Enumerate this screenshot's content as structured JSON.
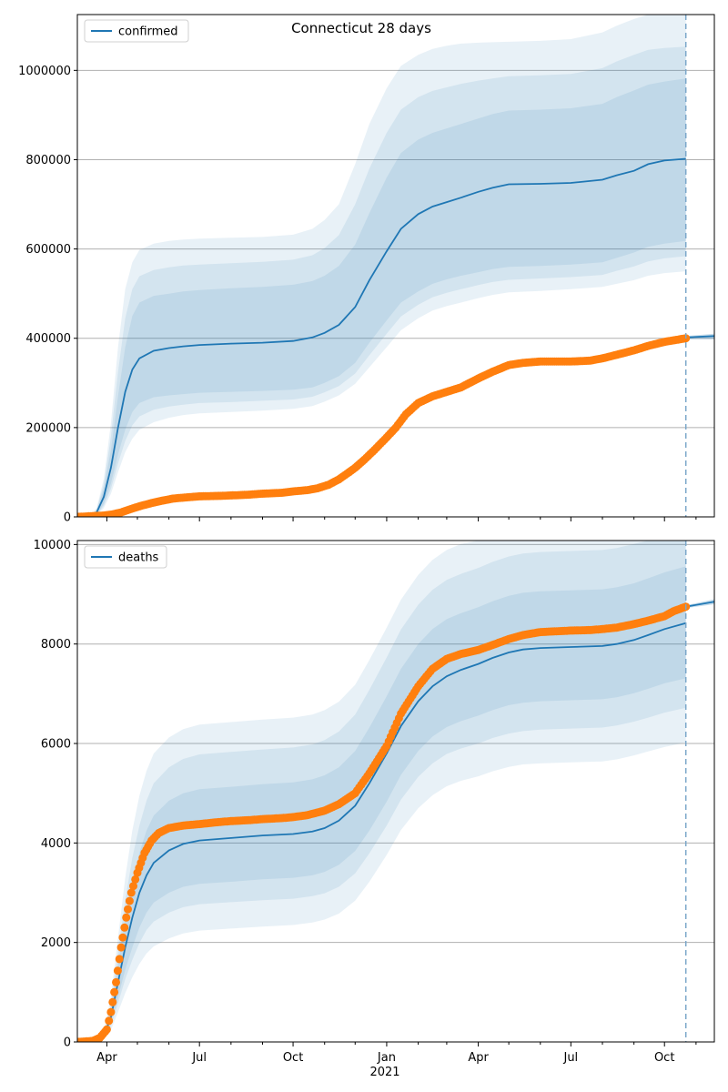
{
  "title": "Connecticut 28 days",
  "colors": {
    "model": "#1f77b4",
    "observed": "#ff7f0e",
    "band": "#1f77b4",
    "grid": "#b0b0b0",
    "vline": "#7aa6c9"
  },
  "x_ticks": [
    {
      "label": "Apr",
      "date": "2020-04-01"
    },
    {
      "label": "Jul",
      "date": "2020-07-01"
    },
    {
      "label": "Oct",
      "date": "2020-10-01"
    },
    {
      "label": "Jan",
      "date": "2021-01-01"
    },
    {
      "label": "Apr",
      "date": "2021-04-01"
    },
    {
      "label": "Jul",
      "date": "2021-07-01"
    },
    {
      "label": "Oct",
      "date": "2021-10-01"
    }
  ],
  "x_year_label": "2021",
  "chart_data": [
    {
      "type": "line",
      "name": "confirmed",
      "legend": "confirmed",
      "legend_position": "top-left",
      "grid": "horizontal",
      "xlim": [
        "2020-03-03",
        "2021-11-19"
      ],
      "ylim": [
        0,
        1125000
      ],
      "y_ticks": [
        0,
        200000,
        400000,
        600000,
        800000,
        1000000
      ],
      "forecast_start": "2021-10-22",
      "model": {
        "x": [
          "2020-03-03",
          "2020-03-15",
          "2020-03-22",
          "2020-03-29",
          "2020-04-05",
          "2020-04-12",
          "2020-04-19",
          "2020-04-26",
          "2020-05-03",
          "2020-05-17",
          "2020-06-01",
          "2020-06-15",
          "2020-07-01",
          "2020-08-01",
          "2020-09-01",
          "2020-10-01",
          "2020-10-20",
          "2020-11-01",
          "2020-11-15",
          "2020-12-01",
          "2020-12-15",
          "2021-01-01",
          "2021-01-15",
          "2021-02-01",
          "2021-02-15",
          "2021-03-01",
          "2021-03-15",
          "2021-04-01",
          "2021-04-15",
          "2021-05-01",
          "2021-06-01",
          "2021-07-01",
          "2021-08-01",
          "2021-08-15",
          "2021-09-01",
          "2021-09-15",
          "2021-10-01",
          "2021-10-22"
        ],
        "y": [
          0,
          0,
          10000,
          45000,
          110000,
          200000,
          280000,
          330000,
          355000,
          372000,
          378000,
          382000,
          385000,
          388000,
          390000,
          394000,
          402000,
          412000,
          430000,
          470000,
          530000,
          595000,
          645000,
          678000,
          695000,
          705000,
          715000,
          728000,
          737000,
          745000,
          746000,
          748000,
          755000,
          765000,
          775000,
          790000,
          798000,
          802000
        ],
        "band_inner": {
          "lower": [
            0,
            0,
            5000,
            30000,
            75000,
            140000,
            195000,
            235000,
            255000,
            268000,
            272000,
            275000,
            278000,
            280000,
            282000,
            285000,
            290000,
            300000,
            315000,
            345000,
            390000,
            440000,
            480000,
            505000,
            522000,
            532000,
            540000,
            548000,
            555000,
            560000,
            562000,
            565000,
            570000,
            580000,
            592000,
            605000,
            612000,
            618000
          ],
          "upper": [
            0,
            0,
            15000,
            62000,
            150000,
            270000,
            380000,
            450000,
            480000,
            495000,
            500000,
            505000,
            508000,
            512000,
            515000,
            520000,
            528000,
            540000,
            562000,
            610000,
            680000,
            760000,
            815000,
            845000,
            860000,
            870000,
            880000,
            892000,
            902000,
            910000,
            912000,
            915000,
            925000,
            940000,
            955000,
            968000,
            975000,
            982000
          ]
        },
        "band_outer": {
          "lower": [
            0,
            0,
            3000,
            20000,
            52000,
            100000,
            145000,
            175000,
            195000,
            212000,
            222000,
            228000,
            232000,
            235000,
            238000,
            242000,
            248000,
            258000,
            272000,
            298000,
            335000,
            380000,
            418000,
            445000,
            462000,
            472000,
            480000,
            490000,
            497000,
            503000,
            506000,
            510000,
            515000,
            522000,
            530000,
            540000,
            546000,
            550000
          ],
          "upper": [
            0,
            0,
            20000,
            85000,
            210000,
            380000,
            510000,
            570000,
            598000,
            612000,
            618000,
            621000,
            623000,
            625000,
            627000,
            632000,
            645000,
            665000,
            700000,
            790000,
            880000,
            960000,
            1010000,
            1035000,
            1048000,
            1055000,
            1060000,
            1062000,
            1063000,
            1064000,
            1066000,
            1070000,
            1085000,
            1100000,
            1115000,
            1125000,
            1125000,
            1125000
          ]
        },
        "band_mid": {
          "lower": [
            0,
            0,
            4000,
            25000,
            63000,
            120000,
            170000,
            205000,
            225000,
            240000,
            247000,
            251000,
            255000,
            257000,
            260000,
            263000,
            269000,
            279000,
            293000,
            321000,
            362000,
            410000,
            449000,
            475000,
            492000,
            502000,
            510000,
            519000,
            526000,
            531000,
            534000,
            537000,
            542000,
            551000,
            561000,
            572000,
            579000,
            584000
          ],
          "upper": [
            0,
            0,
            17000,
            73000,
            180000,
            325000,
            445000,
            510000,
            539000,
            553000,
            559000,
            563000,
            565000,
            568000,
            571000,
            576000,
            586000,
            602000,
            631000,
            700000,
            780000,
            860000,
            912000,
            940000,
            954000,
            962000,
            970000,
            977000,
            982000,
            987000,
            989000,
            992000,
            1005000,
            1020000,
            1035000,
            1046000,
            1050000,
            1053000
          ]
        }
      },
      "forecast_tail": {
        "x": [
          "2021-10-22",
          "2021-11-19"
        ],
        "y": [
          402000,
          405000
        ],
        "lower": [
          398000,
          398000
        ],
        "upper": [
          405000,
          410000
        ]
      },
      "observed": {
        "x": [
          "2020-03-03",
          "2020-03-20",
          "2020-03-29",
          "2020-04-05",
          "2020-04-15",
          "2020-04-25",
          "2020-05-05",
          "2020-05-15",
          "2020-05-25",
          "2020-06-05",
          "2020-06-20",
          "2020-07-01",
          "2020-07-20",
          "2020-08-01",
          "2020-08-20",
          "2020-09-01",
          "2020-09-20",
          "2020-10-01",
          "2020-10-15",
          "2020-10-25",
          "2020-11-05",
          "2020-11-15",
          "2020-11-25",
          "2020-12-01",
          "2020-12-10",
          "2020-12-20",
          "2021-01-01",
          "2021-01-10",
          "2021-01-20",
          "2021-02-01",
          "2021-02-15",
          "2021-03-01",
          "2021-03-15",
          "2021-04-01",
          "2021-04-15",
          "2021-05-01",
          "2021-05-15",
          "2021-06-01",
          "2021-07-01",
          "2021-07-20",
          "2021-08-01",
          "2021-08-15",
          "2021-09-01",
          "2021-09-15",
          "2021-10-01",
          "2021-10-22"
        ],
        "y": [
          0,
          2000,
          3000,
          5000,
          10000,
          18000,
          25000,
          31000,
          36000,
          41000,
          44000,
          46000,
          47000,
          48000,
          50000,
          52000,
          54000,
          57000,
          60000,
          64000,
          72000,
          84000,
          100000,
          110000,
          128000,
          150000,
          178000,
          200000,
          230000,
          255000,
          270000,
          280000,
          290000,
          310000,
          325000,
          340000,
          345000,
          348000,
          348000,
          350000,
          355000,
          363000,
          373000,
          383000,
          392000,
          400000
        ]
      }
    },
    {
      "type": "line",
      "name": "deaths",
      "legend": "deaths",
      "legend_position": "top-left",
      "grid": "horizontal",
      "xlim": [
        "2020-03-03",
        "2021-11-19"
      ],
      "ylim": [
        0,
        10080
      ],
      "y_ticks": [
        0,
        2000,
        4000,
        6000,
        8000,
        10000
      ],
      "forecast_start": "2021-10-22",
      "model": {
        "x": [
          "2020-03-03",
          "2020-03-15",
          "2020-03-22",
          "2020-03-29",
          "2020-04-05",
          "2020-04-12",
          "2020-04-19",
          "2020-04-26",
          "2020-05-03",
          "2020-05-10",
          "2020-05-17",
          "2020-06-01",
          "2020-06-15",
          "2020-07-01",
          "2020-08-01",
          "2020-09-01",
          "2020-10-01",
          "2020-10-20",
          "2020-11-01",
          "2020-11-15",
          "2020-12-01",
          "2020-12-15",
          "2021-01-01",
          "2021-01-15",
          "2021-02-01",
          "2021-02-15",
          "2021-03-01",
          "2021-03-15",
          "2021-04-01",
          "2021-04-15",
          "2021-05-01",
          "2021-05-15",
          "2021-06-01",
          "2021-07-01",
          "2021-08-01",
          "2021-08-15",
          "2021-09-01",
          "2021-09-15",
          "2021-10-01",
          "2021-10-22"
        ],
        "y": [
          0,
          0,
          20,
          120,
          500,
          1200,
          1900,
          2500,
          3000,
          3350,
          3600,
          3850,
          3980,
          4050,
          4100,
          4150,
          4180,
          4230,
          4300,
          4450,
          4750,
          5200,
          5800,
          6350,
          6850,
          7150,
          7350,
          7480,
          7600,
          7720,
          7830,
          7890,
          7920,
          7940,
          7960,
          8000,
          8080,
          8180,
          8300,
          8420
        ],
        "band_inner": {
          "lower": [
            0,
            0,
            15,
            90,
            380,
            900,
            1450,
            1900,
            2300,
            2600,
            2800,
            3000,
            3120,
            3180,
            3220,
            3270,
            3300,
            3350,
            3420,
            3560,
            3840,
            4250,
            4830,
            5370,
            5850,
            6140,
            6330,
            6450,
            6560,
            6670,
            6770,
            6820,
            6850,
            6870,
            6890,
            6930,
            7010,
            7100,
            7210,
            7310
          ],
          "upper": [
            0,
            0,
            28,
            160,
            650,
            1550,
            2450,
            3200,
            3800,
            4250,
            4550,
            4850,
            5000,
            5080,
            5130,
            5180,
            5220,
            5280,
            5360,
            5520,
            5850,
            6320,
            6950,
            7500,
            8000,
            8300,
            8500,
            8620,
            8740,
            8860,
            8970,
            9030,
            9060,
            9080,
            9100,
            9140,
            9220,
            9320,
            9440,
            9560
          ]
        },
        "band_mid": {
          "lower": [
            0,
            0,
            12,
            75,
            320,
            780,
            1260,
            1650,
            1990,
            2250,
            2420,
            2600,
            2710,
            2770,
            2810,
            2850,
            2880,
            2930,
            2990,
            3120,
            3390,
            3790,
            4350,
            4870,
            5330,
            5600,
            5790,
            5900,
            6000,
            6110,
            6200,
            6250,
            6280,
            6300,
            6320,
            6360,
            6440,
            6520,
            6620,
            6720
          ],
          "upper": [
            0,
            0,
            32,
            185,
            760,
            1800,
            2850,
            3700,
            4350,
            4850,
            5200,
            5520,
            5690,
            5780,
            5830,
            5880,
            5920,
            5980,
            6070,
            6240,
            6580,
            7080,
            7730,
            8290,
            8790,
            9090,
            9290,
            9410,
            9530,
            9650,
            9760,
            9820,
            9850,
            9870,
            9890,
            9930,
            10010,
            10080,
            10080,
            10080
          ]
        },
        "band_outer": {
          "lower": [
            0,
            0,
            8,
            55,
            240,
            600,
            980,
            1300,
            1570,
            1780,
            1920,
            2080,
            2180,
            2240,
            2280,
            2320,
            2350,
            2400,
            2460,
            2580,
            2840,
            3220,
            3760,
            4260,
            4700,
            4960,
            5140,
            5250,
            5340,
            5440,
            5530,
            5580,
            5600,
            5620,
            5640,
            5680,
            5760,
            5840,
            5930,
            6020
          ],
          "upper": [
            0,
            0,
            38,
            220,
            900,
            2100,
            3300,
            4250,
            4950,
            5450,
            5800,
            6120,
            6290,
            6380,
            6430,
            6480,
            6520,
            6580,
            6670,
            6840,
            7180,
            7680,
            8330,
            8890,
            9390,
            9690,
            9890,
            10010,
            10080,
            10080,
            10080,
            10080,
            10080,
            10080,
            10080,
            10080,
            10080,
            10080,
            10080,
            10080
          ]
        }
      },
      "forecast_tail": {
        "x": [
          "2021-10-22",
          "2021-11-19"
        ],
        "y": [
          8750,
          8850
        ],
        "lower": [
          8720,
          8800
        ],
        "upper": [
          8780,
          8900
        ]
      },
      "observed": {
        "x": [
          "2020-03-03",
          "2020-03-18",
          "2020-03-25",
          "2020-04-01",
          "2020-04-05",
          "2020-04-10",
          "2020-04-15",
          "2020-04-20",
          "2020-04-25",
          "2020-05-01",
          "2020-05-08",
          "2020-05-15",
          "2020-05-22",
          "2020-06-01",
          "2020-06-15",
          "2020-07-01",
          "2020-07-20",
          "2020-08-01",
          "2020-08-20",
          "2020-09-01",
          "2020-09-20",
          "2020-10-01",
          "2020-10-15",
          "2020-11-01",
          "2020-11-15",
          "2020-12-01",
          "2020-12-15",
          "2021-01-01",
          "2021-01-15",
          "2021-02-01",
          "2021-02-15",
          "2021-03-01",
          "2021-03-15",
          "2021-04-01",
          "2021-04-15",
          "2021-05-01",
          "2021-05-15",
          "2021-06-01",
          "2021-07-01",
          "2021-07-20",
          "2021-08-01",
          "2021-08-15",
          "2021-09-01",
          "2021-09-15",
          "2021-10-01",
          "2021-10-10",
          "2021-10-22"
        ],
        "y": [
          0,
          20,
          80,
          250,
          600,
          1200,
          1900,
          2500,
          3000,
          3400,
          3800,
          4050,
          4200,
          4300,
          4350,
          4380,
          4420,
          4440,
          4460,
          4480,
          4500,
          4520,
          4560,
          4650,
          4780,
          5000,
          5400,
          5950,
          6600,
          7150,
          7500,
          7700,
          7800,
          7880,
          7980,
          8100,
          8180,
          8240,
          8270,
          8280,
          8300,
          8330,
          8400,
          8470,
          8560,
          8660,
          8750
        ]
      }
    }
  ]
}
